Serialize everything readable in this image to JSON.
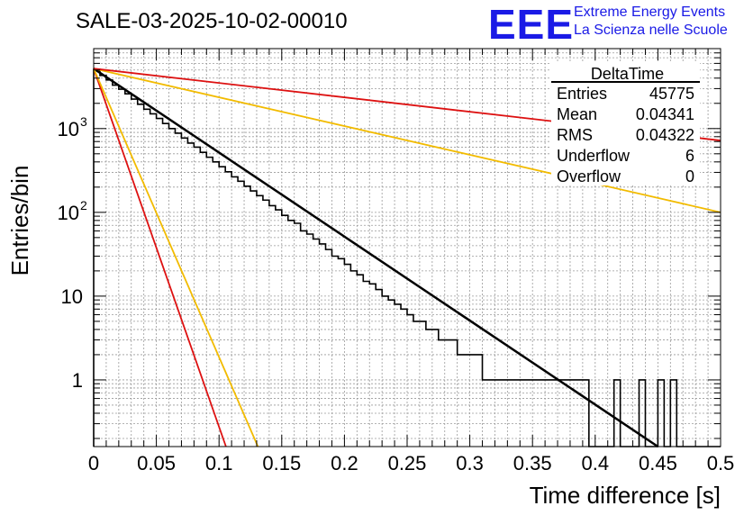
{
  "header": {
    "run_title": "SALE-03-2025-10-02-00010",
    "logo": "EEE",
    "logo_line1": "Extreme Energy Events",
    "logo_line2": "La Scienza nelle Scuole",
    "logo_color": "#1a1ae6"
  },
  "chart_data": {
    "type": "histogram",
    "title": "SALE-03-2025-10-02-00010",
    "xlabel": "Time difference [s]",
    "ylabel": "Entries/bin",
    "xlim": [
      0,
      0.5
    ],
    "ylim_log": [
      0.16,
      9000
    ],
    "x_ticks": [
      0,
      0.05,
      0.1,
      0.15,
      0.2,
      0.25,
      0.3,
      0.35,
      0.4,
      0.45,
      0.5
    ],
    "x_tick_labels": [
      "0",
      "0.05",
      "0.1",
      "0.15",
      "0.2",
      "0.25",
      "0.3",
      "0.35",
      "0.4",
      "0.45",
      "0.5"
    ],
    "y_ticks": [
      {
        "value": 1,
        "label": "1"
      },
      {
        "value": 10,
        "label": "10"
      },
      {
        "value": 100,
        "label": "10",
        "exp": "2"
      },
      {
        "value": 1000,
        "label": "10",
        "exp": "3"
      }
    ],
    "grid": true,
    "bin_width": 0.005,
    "histogram": {
      "name": "DeltaTime",
      "color": "#000000",
      "bins": [
        {
          "x": 0.0,
          "y": 5100
        },
        {
          "x": 0.005,
          "y": 4300
        },
        {
          "x": 0.01,
          "y": 3800
        },
        {
          "x": 0.015,
          "y": 3300
        },
        {
          "x": 0.02,
          "y": 2950
        },
        {
          "x": 0.025,
          "y": 2600
        },
        {
          "x": 0.03,
          "y": 2250
        },
        {
          "x": 0.035,
          "y": 1950
        },
        {
          "x": 0.04,
          "y": 1700
        },
        {
          "x": 0.045,
          "y": 1500
        },
        {
          "x": 0.05,
          "y": 1320
        },
        {
          "x": 0.055,
          "y": 1150
        },
        {
          "x": 0.06,
          "y": 1000
        },
        {
          "x": 0.065,
          "y": 880
        },
        {
          "x": 0.07,
          "y": 770
        },
        {
          "x": 0.075,
          "y": 670
        },
        {
          "x": 0.08,
          "y": 600
        },
        {
          "x": 0.085,
          "y": 520
        },
        {
          "x": 0.09,
          "y": 455
        },
        {
          "x": 0.095,
          "y": 400
        },
        {
          "x": 0.1,
          "y": 350
        },
        {
          "x": 0.105,
          "y": 305
        },
        {
          "x": 0.11,
          "y": 265
        },
        {
          "x": 0.115,
          "y": 235
        },
        {
          "x": 0.12,
          "y": 205
        },
        {
          "x": 0.125,
          "y": 180
        },
        {
          "x": 0.13,
          "y": 158
        },
        {
          "x": 0.135,
          "y": 140
        },
        {
          "x": 0.14,
          "y": 120
        },
        {
          "x": 0.145,
          "y": 107
        },
        {
          "x": 0.15,
          "y": 92
        },
        {
          "x": 0.155,
          "y": 80
        },
        {
          "x": 0.16,
          "y": 74
        },
        {
          "x": 0.165,
          "y": 60
        },
        {
          "x": 0.17,
          "y": 55
        },
        {
          "x": 0.175,
          "y": 48
        },
        {
          "x": 0.18,
          "y": 42
        },
        {
          "x": 0.185,
          "y": 36
        },
        {
          "x": 0.19,
          "y": 30
        },
        {
          "x": 0.195,
          "y": 28
        },
        {
          "x": 0.2,
          "y": 24
        },
        {
          "x": 0.205,
          "y": 20
        },
        {
          "x": 0.21,
          "y": 18
        },
        {
          "x": 0.215,
          "y": 15
        },
        {
          "x": 0.22,
          "y": 14
        },
        {
          "x": 0.225,
          "y": 12
        },
        {
          "x": 0.23,
          "y": 10
        },
        {
          "x": 0.235,
          "y": 9
        },
        {
          "x": 0.24,
          "y": 8
        },
        {
          "x": 0.245,
          "y": 7
        },
        {
          "x": 0.25,
          "y": 6
        },
        {
          "x": 0.255,
          "y": 5
        },
        {
          "x": 0.26,
          "y": 5
        },
        {
          "x": 0.265,
          "y": 4
        },
        {
          "x": 0.27,
          "y": 4
        },
        {
          "x": 0.275,
          "y": 3
        },
        {
          "x": 0.28,
          "y": 3
        },
        {
          "x": 0.285,
          "y": 3
        },
        {
          "x": 0.29,
          "y": 2
        },
        {
          "x": 0.295,
          "y": 2
        },
        {
          "x": 0.3,
          "y": 2
        },
        {
          "x": 0.305,
          "y": 2
        },
        {
          "x": 0.31,
          "y": 1
        },
        {
          "x": 0.315,
          "y": 1
        },
        {
          "x": 0.32,
          "y": 1
        },
        {
          "x": 0.325,
          "y": 1
        },
        {
          "x": 0.33,
          "y": 1
        },
        {
          "x": 0.335,
          "y": 1
        },
        {
          "x": 0.34,
          "y": 1
        },
        {
          "x": 0.345,
          "y": 1
        },
        {
          "x": 0.35,
          "y": 1
        },
        {
          "x": 0.355,
          "y": 1
        },
        {
          "x": 0.36,
          "y": 1
        },
        {
          "x": 0.365,
          "y": 1
        },
        {
          "x": 0.37,
          "y": 1
        },
        {
          "x": 0.375,
          "y": 1
        },
        {
          "x": 0.38,
          "y": 1
        },
        {
          "x": 0.385,
          "y": 1
        },
        {
          "x": 0.39,
          "y": 1
        },
        {
          "x": 0.395,
          "y": 0
        },
        {
          "x": 0.4,
          "y": 0
        },
        {
          "x": 0.405,
          "y": 0
        },
        {
          "x": 0.41,
          "y": 0
        },
        {
          "x": 0.415,
          "y": 1
        },
        {
          "x": 0.42,
          "y": 0
        },
        {
          "x": 0.425,
          "y": 0
        },
        {
          "x": 0.43,
          "y": 0
        },
        {
          "x": 0.435,
          "y": 1
        },
        {
          "x": 0.44,
          "y": 0
        },
        {
          "x": 0.445,
          "y": 0
        },
        {
          "x": 0.45,
          "y": 1
        },
        {
          "x": 0.455,
          "y": 0
        },
        {
          "x": 0.46,
          "y": 1
        },
        {
          "x": 0.465,
          "y": 0
        },
        {
          "x": 0.47,
          "y": 0
        },
        {
          "x": 0.475,
          "y": 0
        },
        {
          "x": 0.48,
          "y": 0
        },
        {
          "x": 0.485,
          "y": 0
        },
        {
          "x": 0.49,
          "y": 0
        },
        {
          "x": 0.495,
          "y": 0
        }
      ]
    },
    "fit_lines": [
      {
        "name": "fit",
        "color": "#000000",
        "width": 2.5,
        "x0": 0,
        "y0": 5200,
        "x1": 0.45,
        "y1": 0.16
      },
      {
        "name": "red-steep",
        "color": "#dd1111",
        "width": 1.8,
        "x0": 0,
        "y0": 5200,
        "x1": 0.1055,
        "y1": 0.16
      },
      {
        "name": "orange-steep",
        "color": "#f2bb00",
        "width": 1.8,
        "x0": 0,
        "y0": 5200,
        "x1": 0.131,
        "y1": 0.16
      },
      {
        "name": "orange-shallow",
        "color": "#f2bb00",
        "width": 1.8,
        "x0": 0,
        "y0": 5200,
        "x1": 0.5,
        "y1": 100
      },
      {
        "name": "red-shallow",
        "color": "#dd1111",
        "width": 1.8,
        "x0": 0,
        "y0": 5200,
        "x1": 0.5,
        "y1": 720
      }
    ],
    "stats_box": {
      "title": "DeltaTime",
      "rows": [
        {
          "label": "Entries",
          "value": "45775"
        },
        {
          "label": "Mean",
          "value": "0.04341"
        },
        {
          "label": "RMS",
          "value": "0.04322"
        },
        {
          "label": "Underflow",
          "value": "6"
        },
        {
          "label": "Overflow",
          "value": "0"
        }
      ]
    }
  }
}
